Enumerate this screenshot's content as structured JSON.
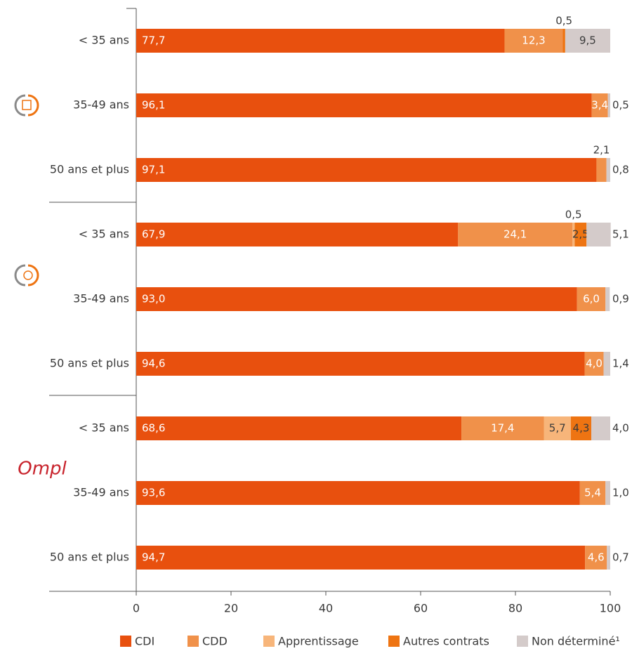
{
  "chart_data": {
    "type": "stacked_bar_horizontal",
    "categories": [
      "< 35 ans",
      "35-49 ans",
      "50 ans et plus",
      "< 35 ans",
      "35-49 ans",
      "50 ans et plus",
      "< 35 ans",
      "35-49 ans",
      "50 ans et plus"
    ],
    "groups": [
      null,
      null,
      "Ompl"
    ],
    "series": [
      {
        "name": "CDI",
        "color": "#e8500e",
        "values": [
          77.7,
          96.1,
          97.1,
          67.9,
          93.0,
          94.6,
          68.6,
          93.6,
          94.7
        ],
        "value_labels": [
          "77,7",
          "96,1",
          "97,1",
          "67,9",
          "93,0",
          "94,6",
          "68,6",
          "93,6",
          "94,7"
        ]
      },
      {
        "name": "CDD",
        "color": "#f0914a",
        "values": [
          12.3,
          3.4,
          2.1,
          24.1,
          6.0,
          4.0,
          17.4,
          5.4,
          4.6
        ],
        "value_labels": [
          "12,3",
          "3,4",
          "2,1",
          "24,1",
          "6,0",
          "4,0",
          "17,4",
          "5,4",
          "4,6"
        ]
      },
      {
        "name": "Apprentissage",
        "color": "#f7b57a",
        "values": [
          null,
          null,
          null,
          0.5,
          null,
          null,
          5.7,
          null,
          null
        ],
        "value_labels": [
          null,
          null,
          null,
          "0,5",
          null,
          null,
          "5,7",
          null,
          null
        ]
      },
      {
        "name": "Autres contrats",
        "color": "#ee7412",
        "values": [
          0.5,
          null,
          null,
          2.5,
          null,
          null,
          4.3,
          null,
          null
        ],
        "value_labels": [
          "0,5",
          null,
          null,
          "2,5",
          null,
          null,
          "4,3",
          null,
          null
        ]
      },
      {
        "name": "Non déterminé¹",
        "color": "#d4cbca",
        "values": [
          9.5,
          0.5,
          0.8,
          5.1,
          0.9,
          1.4,
          4.0,
          1.0,
          0.7
        ],
        "value_labels": [
          "9,5",
          "0,5",
          "0,8",
          "5,1",
          "0,9",
          "1,4",
          "4,0",
          "1,0",
          "0,7"
        ]
      }
    ],
    "xlim": [
      0,
      100
    ],
    "xticks": [
      0,
      20,
      40,
      60,
      80,
      100
    ]
  }
}
